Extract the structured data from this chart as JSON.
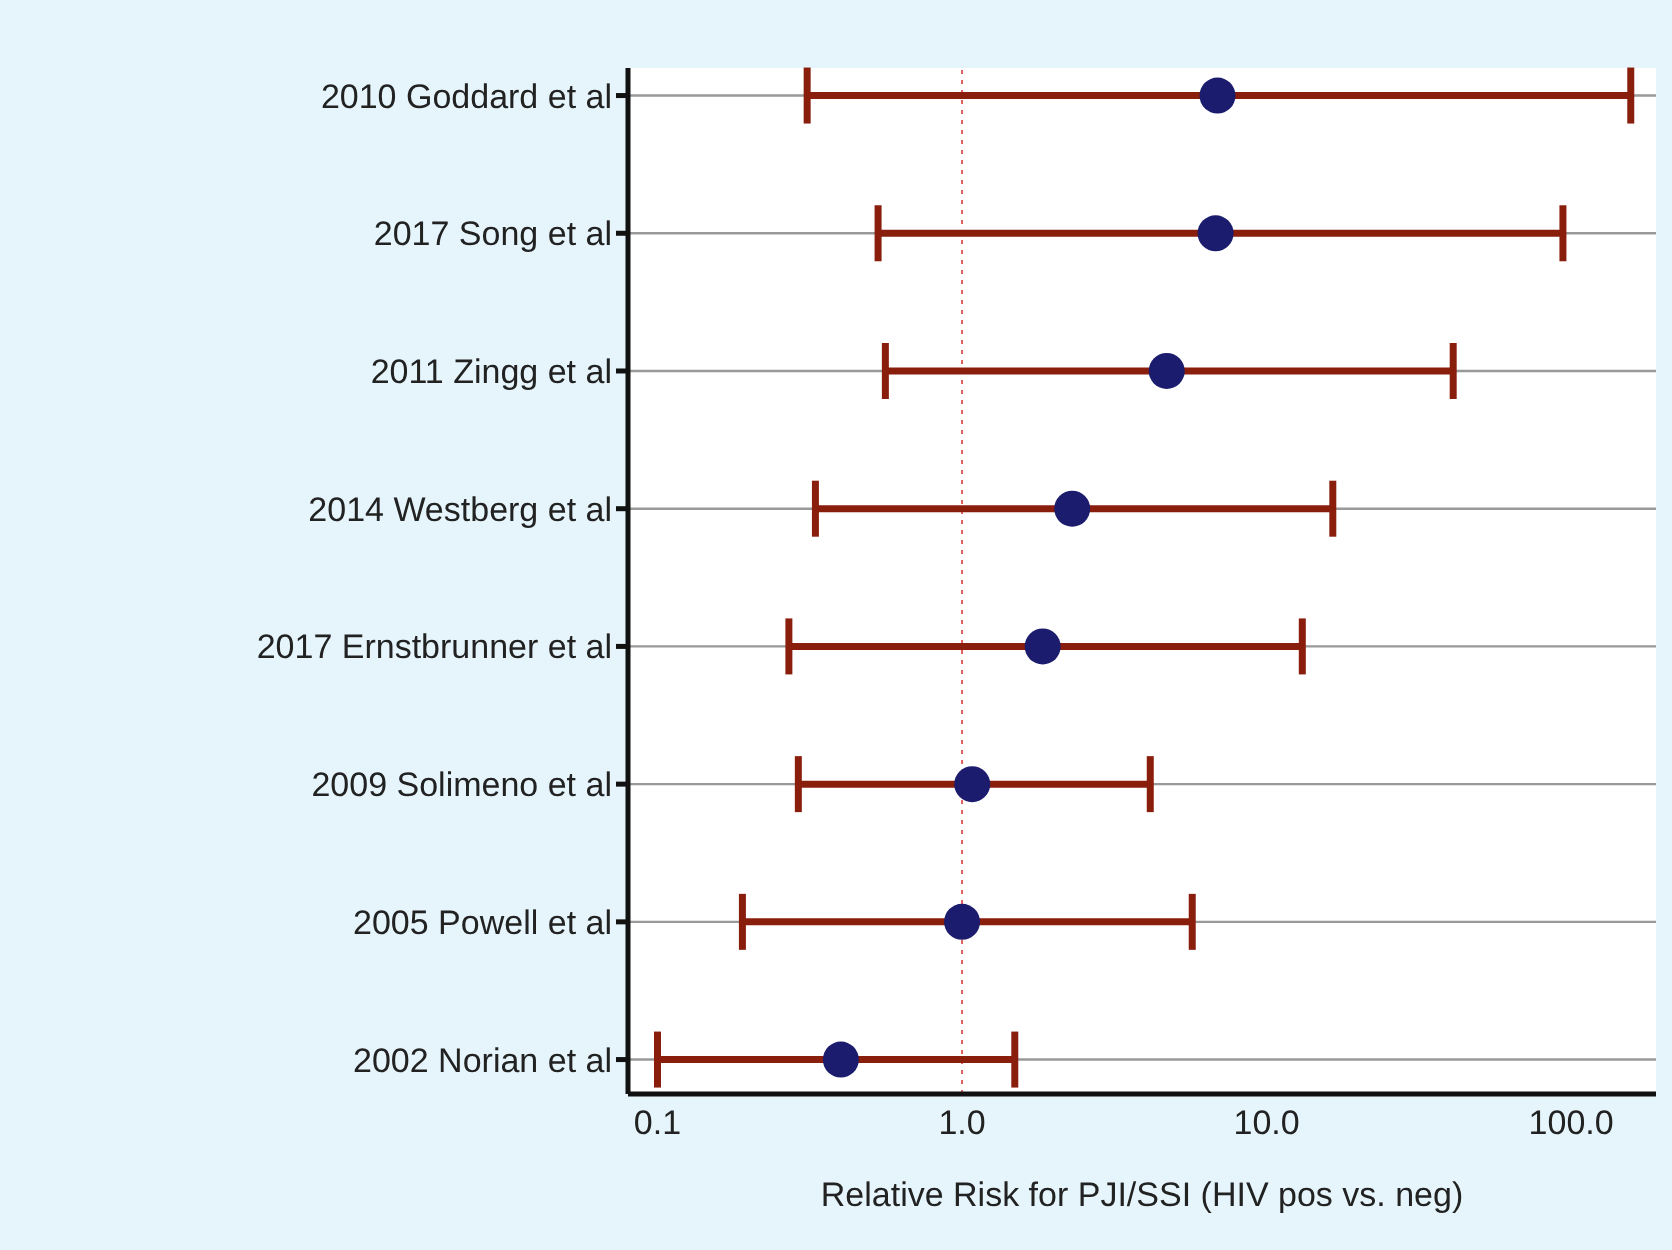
{
  "chart_data": {
    "type": "scatter",
    "orientation": "horizontal",
    "xlabel": "Relative Risk for PJI/SSI (HIV pos vs. neg)",
    "categories": [
      "2010 Goddard et al",
      "2017 Song et al",
      "2011 Zingg et al",
      "2014 Westberg et al",
      "2017 Ernstbrunner et al",
      "2009 Solimeno et al",
      "2005 Powell et al",
      "2002 Norian et al"
    ],
    "series": [
      {
        "color": "#1c1c6e",
        "values": [
          6.9,
          6.8,
          4.7,
          2.3,
          1.84,
          1.08,
          1.0,
          0.4
        ],
        "errors": [
          [
            0.31,
            157
          ],
          [
            0.53,
            94
          ],
          [
            0.56,
            41
          ],
          [
            0.33,
            16.5
          ],
          [
            0.27,
            13.1
          ],
          [
            0.29,
            4.15
          ],
          [
            0.19,
            5.7
          ],
          [
            0.1,
            1.49
          ]
        ]
      }
    ],
    "log": "x",
    "xlim": [
      0.08,
      190
    ],
    "xticks": [
      0.1,
      {
        "value": 1,
        "label": "1.0"
      },
      {
        "value": 10,
        "label": "10.0"
      },
      {
        "value": 100,
        "label": "100.0"
      }
    ],
    "ref_lines": [
      {
        "axis": "x",
        "value": 1,
        "color": "#e06060",
        "line_style": "dotted"
      }
    ],
    "grid": "y",
    "marker": "circle",
    "legend": false
  }
}
